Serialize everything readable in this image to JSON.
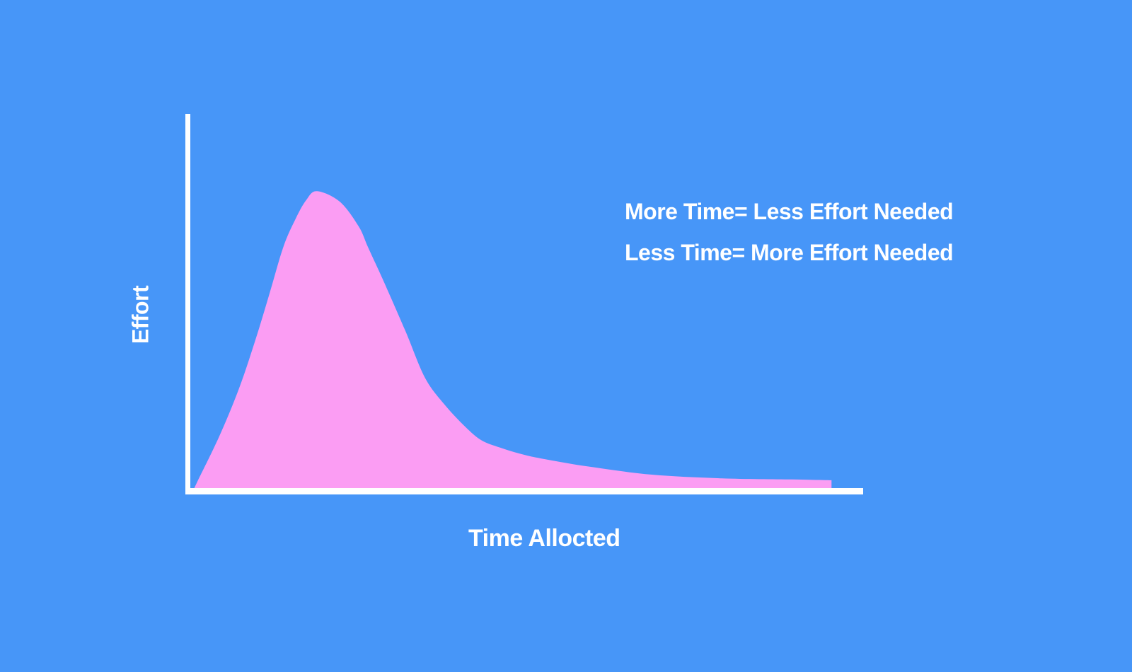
{
  "canvas": {
    "background_color": "#4796F8",
    "text_color": "#FFFFFF"
  },
  "annotation": {
    "line1": "More Time= Less Effort Needed",
    "line2": "Less Time= More Effort Needed"
  },
  "chart_data": {
    "type": "area",
    "title": "",
    "xlabel": "Time Allocted",
    "ylabel": "Effort",
    "legend": null,
    "grid": false,
    "x_tick_labels": [],
    "y_tick_labels": [],
    "xlim": [
      0,
      100
    ],
    "ylim": [
      0,
      100
    ],
    "axis_color": "#FFFFFF",
    "fill_color": "#FB9DF3",
    "peak": {
      "x": 18.9,
      "y": 79.2
    },
    "curve_points": [
      [
        0.7,
        0.0
      ],
      [
        1.2,
        1.9
      ],
      [
        4.4,
        13.8
      ],
      [
        7.3,
        26.4
      ],
      [
        9.7,
        39.1
      ],
      [
        11.8,
        51.5
      ],
      [
        13.9,
        64.2
      ],
      [
        15.7,
        71.7
      ],
      [
        17.3,
        76.8
      ],
      [
        18.9,
        79.2
      ],
      [
        22.3,
        76.4
      ],
      [
        25.1,
        69.8
      ],
      [
        26.5,
        64.2
      ],
      [
        28.6,
        56.0
      ],
      [
        32.0,
        42.1
      ],
      [
        34.9,
        29.6
      ],
      [
        37.7,
        22.6
      ],
      [
        40.9,
        16.4
      ],
      [
        43.3,
        12.8
      ],
      [
        46.1,
        10.8
      ],
      [
        49.6,
        8.9
      ],
      [
        53.1,
        7.6
      ],
      [
        59.4,
        5.7
      ],
      [
        68.5,
        3.6
      ],
      [
        79.0,
        2.6
      ],
      [
        89.5,
        2.3
      ],
      [
        95.3,
        2.1
      ]
    ]
  }
}
